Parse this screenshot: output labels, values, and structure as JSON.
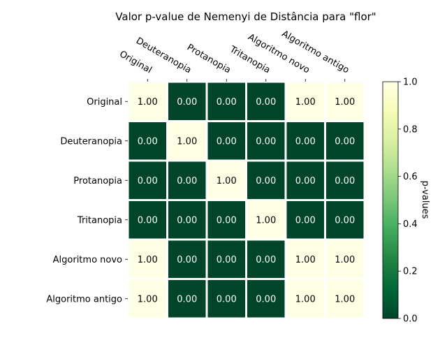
{
  "chart_data": {
    "type": "heatmap",
    "title": "Valor p-value de Nemenyi de Distância para \"flor\"",
    "row_labels": [
      "Original",
      "Deuteranopia",
      "Protanopia",
      "Tritanopia",
      "Algoritmo novo",
      "Algoritmo antigo"
    ],
    "col_labels": [
      "Original",
      "Deuteranopia",
      "Protanopia",
      "Tritanopia",
      "Algoritmo novo",
      "Algoritmo antigo"
    ],
    "values": [
      [
        1.0,
        0.0,
        0.0,
        0.0,
        1.0,
        1.0
      ],
      [
        0.0,
        1.0,
        0.0,
        0.0,
        0.0,
        0.0
      ],
      [
        0.0,
        0.0,
        1.0,
        0.0,
        0.0,
        0.0
      ],
      [
        0.0,
        0.0,
        0.0,
        1.0,
        0.0,
        0.0
      ],
      [
        1.0,
        0.0,
        0.0,
        0.0,
        1.0,
        1.0
      ],
      [
        1.0,
        0.0,
        0.0,
        0.0,
        1.0,
        1.0
      ]
    ],
    "value_format": "0.00",
    "colormap": "YlGn_r",
    "color_low": "#004529",
    "color_high": "#ffffe5",
    "colorbar": {
      "label": "p-values",
      "range": [
        0.0,
        1.0
      ],
      "ticks": [
        0.0,
        0.2,
        0.4,
        0.6,
        0.8,
        1.0
      ],
      "tick_labels": [
        "0.0",
        "0.2",
        "0.4",
        "0.6",
        "0.8",
        "1.0"
      ]
    },
    "x_tick_position": "top",
    "grid": false
  }
}
